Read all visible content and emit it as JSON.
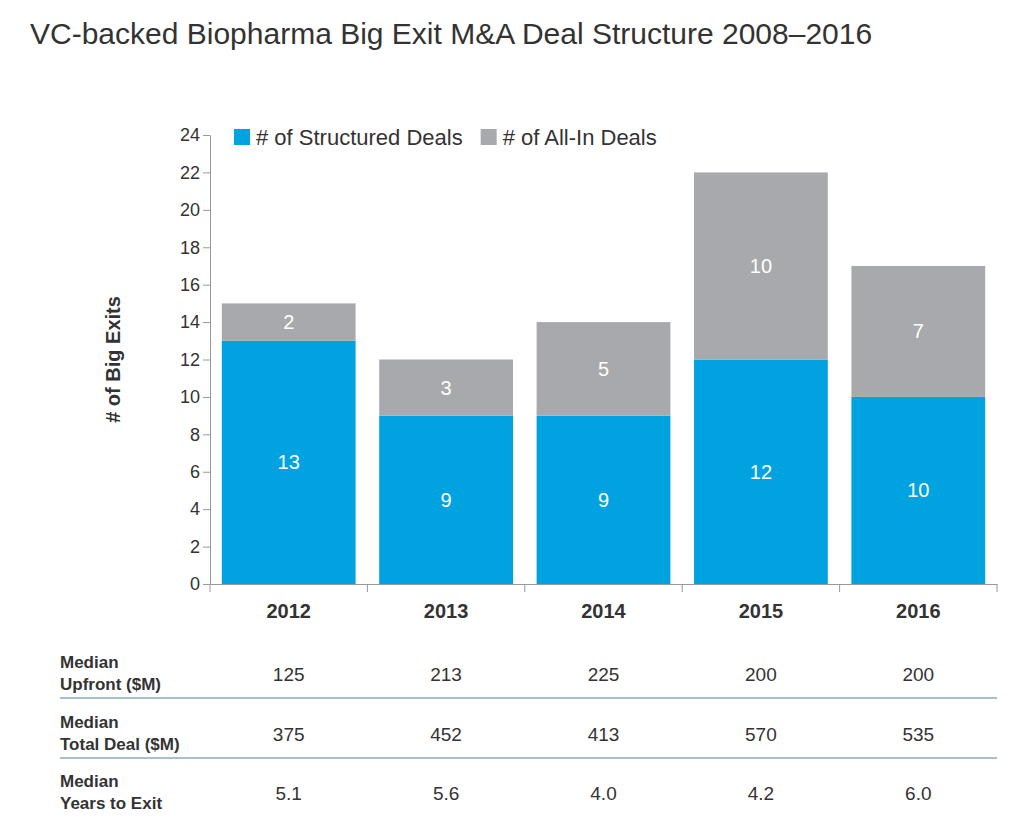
{
  "chart_data": {
    "type": "bar",
    "title": "VC-backed Biopharma Big Exit M&A Deal Structure 2008–2016",
    "y_label": "# of Big Exits",
    "categories": [
      "2012",
      "2013",
      "2014",
      "2015",
      "2016"
    ],
    "series": [
      {
        "name": "# of Structured Deals",
        "color": "#00a3e0",
        "values": [
          13,
          9,
          9,
          12,
          10
        ]
      },
      {
        "name": "# of All-In Deals",
        "color": "#a7a9ac",
        "values": [
          2,
          3,
          5,
          10,
          7
        ]
      }
    ],
    "ylim": [
      0,
      24
    ],
    "yticks": [
      0,
      2,
      4,
      6,
      8,
      10,
      12,
      14,
      16,
      18,
      20,
      22,
      24
    ],
    "stacked": true,
    "data_labels": true,
    "grid": false,
    "legend": "top-left"
  },
  "table": {
    "rows": [
      {
        "label": [
          "Median",
          "Upfront ($M)"
        ],
        "cells": [
          "125",
          "213",
          "225",
          "200",
          "200"
        ]
      },
      {
        "label": [
          "Median",
          "Total Deal ($M)"
        ],
        "cells": [
          "375",
          "452",
          "413",
          "570",
          "535"
        ]
      },
      {
        "label": [
          "Median",
          "Years to Exit"
        ],
        "cells": [
          "5.1",
          "5.6",
          "4.0",
          "4.2",
          "6.0"
        ]
      }
    ]
  }
}
